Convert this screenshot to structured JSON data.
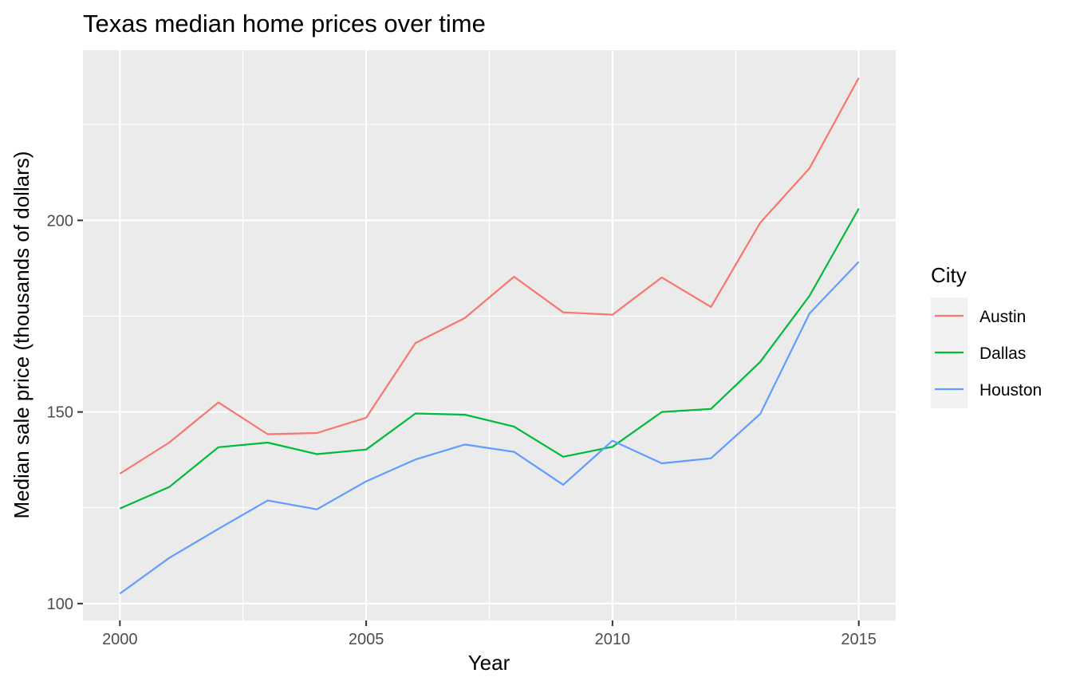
{
  "chart_data": {
    "type": "line",
    "title": "Texas median home prices over time",
    "xlabel": "Year",
    "ylabel": "Median sale price (thousands of dollars)",
    "x": [
      2000,
      2001,
      2002,
      2003,
      2004,
      2005,
      2006,
      2007,
      2008,
      2009,
      2010,
      2011,
      2012,
      2013,
      2014,
      2015
    ],
    "xlim": [
      1999.25,
      2015.75
    ],
    "ylim": [
      95.6,
      244.4
    ],
    "xticks": [
      2000,
      2005,
      2010,
      2015
    ],
    "yticks": [
      100,
      150,
      200
    ],
    "xtick_labels": [
      "2000",
      "2005",
      "2010",
      "2015"
    ],
    "ytick_labels": [
      "100",
      "150",
      "200"
    ],
    "x_minor": [
      2002.5,
      2007.5,
      2012.5
    ],
    "y_minor": [
      125,
      175,
      225
    ],
    "grid": true,
    "legend": {
      "title": "City",
      "position": "right"
    },
    "series": [
      {
        "name": "Austin",
        "color": "#F8766D",
        "values": [
          133.9,
          142.0,
          152.5,
          144.2,
          144.5,
          148.5,
          168.0,
          174.5,
          185.3,
          176.0,
          175.4,
          185.1,
          177.4,
          199.4,
          213.6,
          237.2
        ]
      },
      {
        "name": "Dallas",
        "color": "#00BA38",
        "values": [
          124.8,
          130.4,
          140.8,
          142.0,
          139.0,
          140.2,
          149.6,
          149.3,
          146.2,
          138.3,
          140.9,
          150.0,
          150.8,
          163.1,
          180.3,
          203.1
        ]
      },
      {
        "name": "Houston",
        "color": "#619CFF",
        "values": [
          102.6,
          111.9,
          119.5,
          126.9,
          124.6,
          131.9,
          137.6,
          141.5,
          139.6,
          131.0,
          142.5,
          136.6,
          137.9,
          149.5,
          175.7,
          189.2
        ]
      }
    ]
  }
}
